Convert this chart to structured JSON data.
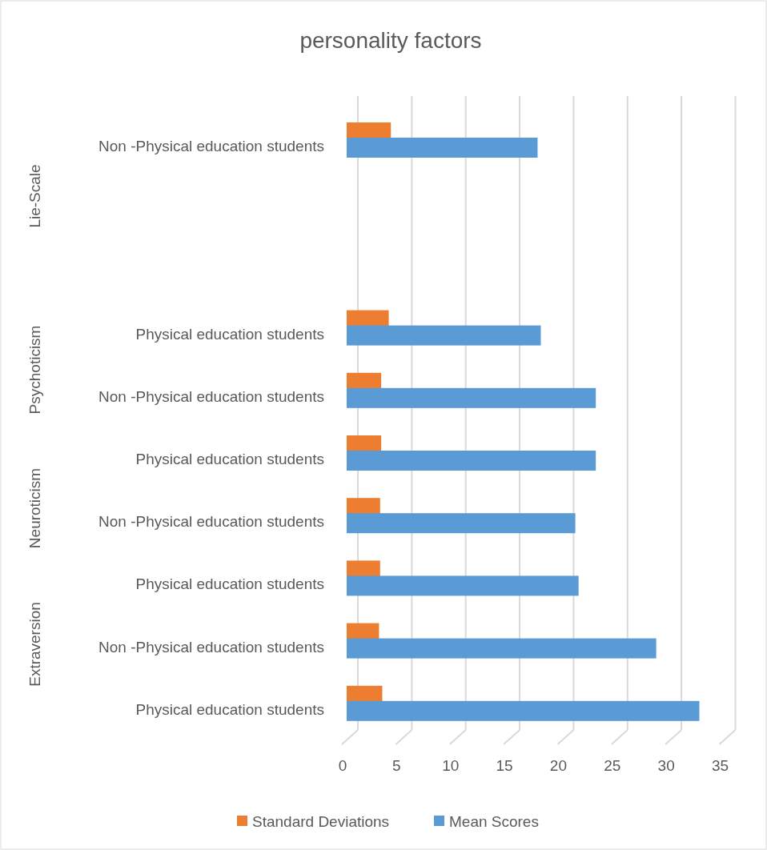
{
  "chart_data": {
    "type": "bar",
    "orientation": "horizontal",
    "title": "personality factors",
    "categories": [
      "Non -Physical education students",
      null,
      null,
      "Physical education students",
      "Non -Physical education students",
      "Physical education students",
      "Non -Physical education students",
      "Physical education students",
      "Non -Physical education students",
      "Physical education students"
    ],
    "series": [
      {
        "name": "Standard Deviations",
        "color": "#ed7d31",
        "values": [
          4.1,
          null,
          null,
          3.9,
          3.2,
          3.2,
          3.1,
          3.1,
          3.0,
          3.3
        ]
      },
      {
        "name": "Mean Scores",
        "color": "#5b9bd5",
        "values": [
          17.7,
          null,
          null,
          18.0,
          23.1,
          23.1,
          21.2,
          21.5,
          28.7,
          32.7
        ]
      }
    ],
    "xlim": [
      0,
      35
    ],
    "xticks": [
      0,
      5,
      10,
      15,
      20,
      25,
      30,
      35
    ],
    "grid": "x",
    "legend": "bottom",
    "annotations": [
      "Lie-Scale",
      "Psychoticism",
      "Neuroticism",
      "Extraversion"
    ]
  }
}
